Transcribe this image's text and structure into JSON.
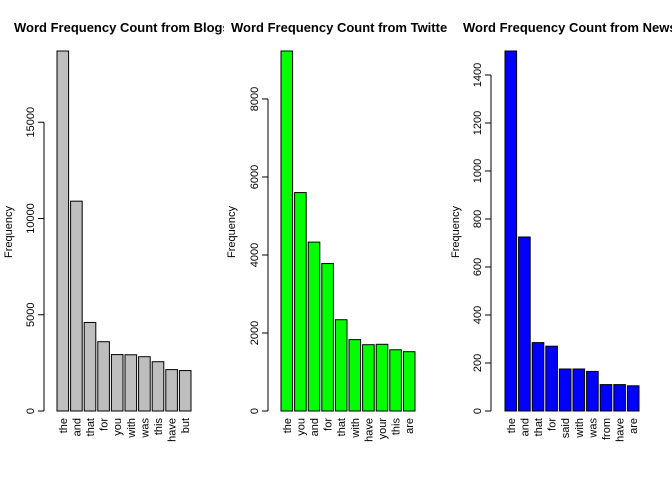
{
  "chart_data": [
    {
      "type": "bar",
      "title": "Word Frequency Count from Blogs",
      "xlabel": "",
      "ylabel": "Frequency",
      "bar_color": "#bebebe",
      "categories": [
        "the",
        "and",
        "that",
        "for",
        "you",
        "with",
        "was",
        "this",
        "have",
        "but"
      ],
      "values": [
        18700,
        10900,
        4600,
        3600,
        2930,
        2920,
        2820,
        2560,
        2150,
        2100
      ],
      "ylim": [
        0,
        18700
      ],
      "yticks": [
        0,
        5000,
        10000,
        15000
      ],
      "ytick_labels": [
        "0",
        "5000",
        "10000",
        "15000"
      ],
      "grid": false,
      "legend": "none"
    },
    {
      "type": "bar",
      "title": "Word Frequency Count from Twitter",
      "xlabel": "",
      "ylabel": "Frequency",
      "bar_color": "#00ff00",
      "categories": [
        "the",
        "you",
        "and",
        "for",
        "that",
        "with",
        "have",
        "your",
        "this",
        "are"
      ],
      "values": [
        9230,
        5600,
        4330,
        3780,
        2340,
        1830,
        1700,
        1710,
        1570,
        1520
      ],
      "ylim": [
        0,
        9230
      ],
      "yticks": [
        0,
        2000,
        4000,
        6000,
        8000
      ],
      "ytick_labels": [
        "0",
        "2000",
        "4000",
        "6000",
        "8000"
      ],
      "grid": false,
      "legend": "none"
    },
    {
      "type": "bar",
      "title": "Word Frequency Count from News",
      "xlabel": "",
      "ylabel": "Frequency",
      "bar_color": "#0000ff",
      "categories": [
        "the",
        "and",
        "that",
        "for",
        "said",
        "with",
        "was",
        "from",
        "have",
        "are"
      ],
      "values": [
        1500,
        725,
        285,
        270,
        175,
        175,
        165,
        110,
        110,
        105
      ],
      "ylim": [
        0,
        1500
      ],
      "yticks": [
        0,
        200,
        400,
        600,
        800,
        1000,
        1200,
        1400
      ],
      "ytick_labels": [
        "0",
        "200",
        "400",
        "600",
        "800",
        "1000",
        "1200",
        "1400"
      ],
      "grid": false,
      "legend": "none"
    }
  ]
}
